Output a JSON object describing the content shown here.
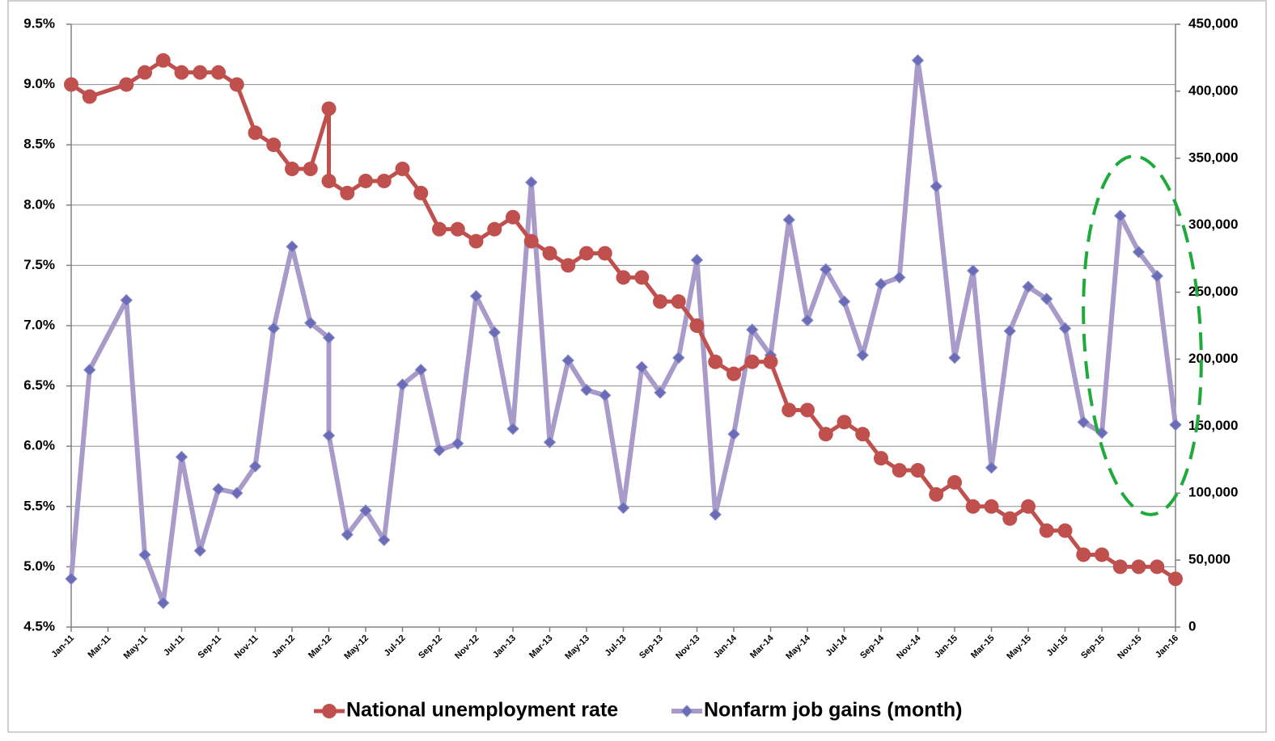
{
  "chart_data": {
    "type": "line",
    "x": [
      "Jan-11",
      "Feb-11",
      "Apr-11",
      "May-11",
      "Jun-11",
      "Jul-11",
      "Aug-11",
      "Sep-11",
      "Oct-11",
      "Nov-11",
      "Dec-11",
      "Jan-12",
      "Feb-12",
      "Mar-12",
      "Mar-12",
      "Apr-12",
      "May-12",
      "Jun-12",
      "Jul-12",
      "Aug-12",
      "Sep-12",
      "Oct-12",
      "Nov-12",
      "Dec-12",
      "Jan-13",
      "Feb-13",
      "Mar-13",
      "Apr-13",
      "May-13",
      "Jun-13",
      "Jul-13",
      "Aug-13",
      "Sep-13",
      "Oct-13",
      "Nov-13",
      "Dec-13",
      "Jan-14",
      "Feb-14",
      "Mar-14",
      "Apr-14",
      "May-14",
      "Jun-14",
      "Jul-14",
      "Aug-14",
      "Sep-14",
      "Oct-14",
      "Nov-14",
      "Dec-14",
      "Jan-15",
      "Feb-15",
      "Mar-15",
      "Apr-15",
      "May-15",
      "Jun-15",
      "Jul-15",
      "Aug-15",
      "Sep-15",
      "Oct-15",
      "Nov-15",
      "Dec-15",
      "Jan-16"
    ],
    "xticks": [
      "Jan-11",
      "Mar-11",
      "May-11",
      "Jul-11",
      "Sep-11",
      "Nov-11",
      "Jan-12",
      "Mar-12",
      "May-12",
      "Jul-12",
      "Sep-12",
      "Nov-12",
      "Jan-13",
      "Mar-13",
      "May-13",
      "Jul-13",
      "Sep-13",
      "Nov-13",
      "Jan-14",
      "Mar-14",
      "May-14",
      "Jul-14",
      "Sep-14",
      "Nov-14",
      "Jan-15",
      "Mar-15",
      "May-15",
      "Jul-15",
      "Sep-15",
      "Nov-15",
      "Jan-16"
    ],
    "series": [
      {
        "name": "National unemployment rate",
        "color": "#c0504d",
        "marker": "circle",
        "values": [
          9.0,
          8.9,
          9.0,
          9.1,
          9.2,
          9.1,
          9.1,
          9.1,
          9.0,
          8.6,
          8.5,
          8.3,
          8.3,
          8.8,
          8.2,
          8.1,
          8.2,
          8.2,
          8.3,
          8.1,
          7.8,
          7.8,
          7.7,
          7.8,
          7.9,
          7.7,
          7.6,
          7.5,
          7.6,
          7.6,
          7.4,
          7.4,
          7.2,
          7.2,
          7.0,
          6.7,
          6.6,
          6.7,
          6.7,
          6.3,
          6.3,
          6.1,
          6.2,
          6.1,
          5.9,
          5.8,
          5.8,
          5.6,
          5.7,
          5.5,
          5.5,
          5.4,
          5.5,
          5.3,
          5.3,
          5.1,
          5.1,
          5.0,
          5.0,
          5.0,
          4.9
        ]
      },
      {
        "name": "Nonfarm job gains (month)",
        "color": "#a89bc9",
        "marker": "diamond",
        "marker_color": "#6a6cb8",
        "axis": "y2",
        "values": [
          36000,
          192000,
          244000,
          54000,
          18000,
          127000,
          57000,
          103000,
          100000,
          120000,
          223000,
          284000,
          227000,
          216000,
          143000,
          69000,
          87000,
          65000,
          181000,
          192000,
          132000,
          137000,
          247000,
          220000,
          148000,
          332000,
          138000,
          199000,
          177000,
          173000,
          89000,
          194000,
          175000,
          201000,
          274000,
          84000,
          144000,
          222000,
          203000,
          304000,
          229000,
          267000,
          243000,
          203000,
          256000,
          261000,
          423000,
          329000,
          201000,
          266000,
          119000,
          221000,
          254000,
          245000,
          223000,
          153000,
          145000,
          307000,
          280000,
          262000,
          151000
        ]
      }
    ],
    "ylim": [
      4.5,
      9.5
    ],
    "yticks": [
      {
        "value": 4.5,
        "label": "4.5%"
      },
      {
        "value": 5.0,
        "label": "5.0%"
      },
      {
        "value": 5.5,
        "label": "5.5%"
      },
      {
        "value": 6.0,
        "label": "6.0%"
      },
      {
        "value": 6.5,
        "label": "6.5%"
      },
      {
        "value": 7.0,
        "label": "7.0%"
      },
      {
        "value": 7.5,
        "label": "7.5%"
      },
      {
        "value": 8.0,
        "label": "8.0%"
      },
      {
        "value": 8.5,
        "label": "8.5%"
      },
      {
        "value": 9.0,
        "label": "9.0%"
      },
      {
        "value": 9.5,
        "label": "9.5%"
      }
    ],
    "y2lim": [
      0,
      450000
    ],
    "y2ticks": [
      0,
      {
        "value": 50000,
        "label": "50,000"
      },
      {
        "value": 100000,
        "label": "100,000"
      },
      {
        "value": 150000,
        "label": "150,000"
      },
      {
        "value": 200000,
        "label": "200,000"
      },
      {
        "value": 250000,
        "label": "250,000"
      },
      {
        "value": 300000,
        "label": "300,000"
      },
      {
        "value": 350000,
        "label": "350,000"
      },
      {
        "value": 400000,
        "label": "400,000"
      },
      {
        "value": 450000,
        "label": "450,000"
      }
    ],
    "grid": true,
    "legend": "bottom"
  }
}
